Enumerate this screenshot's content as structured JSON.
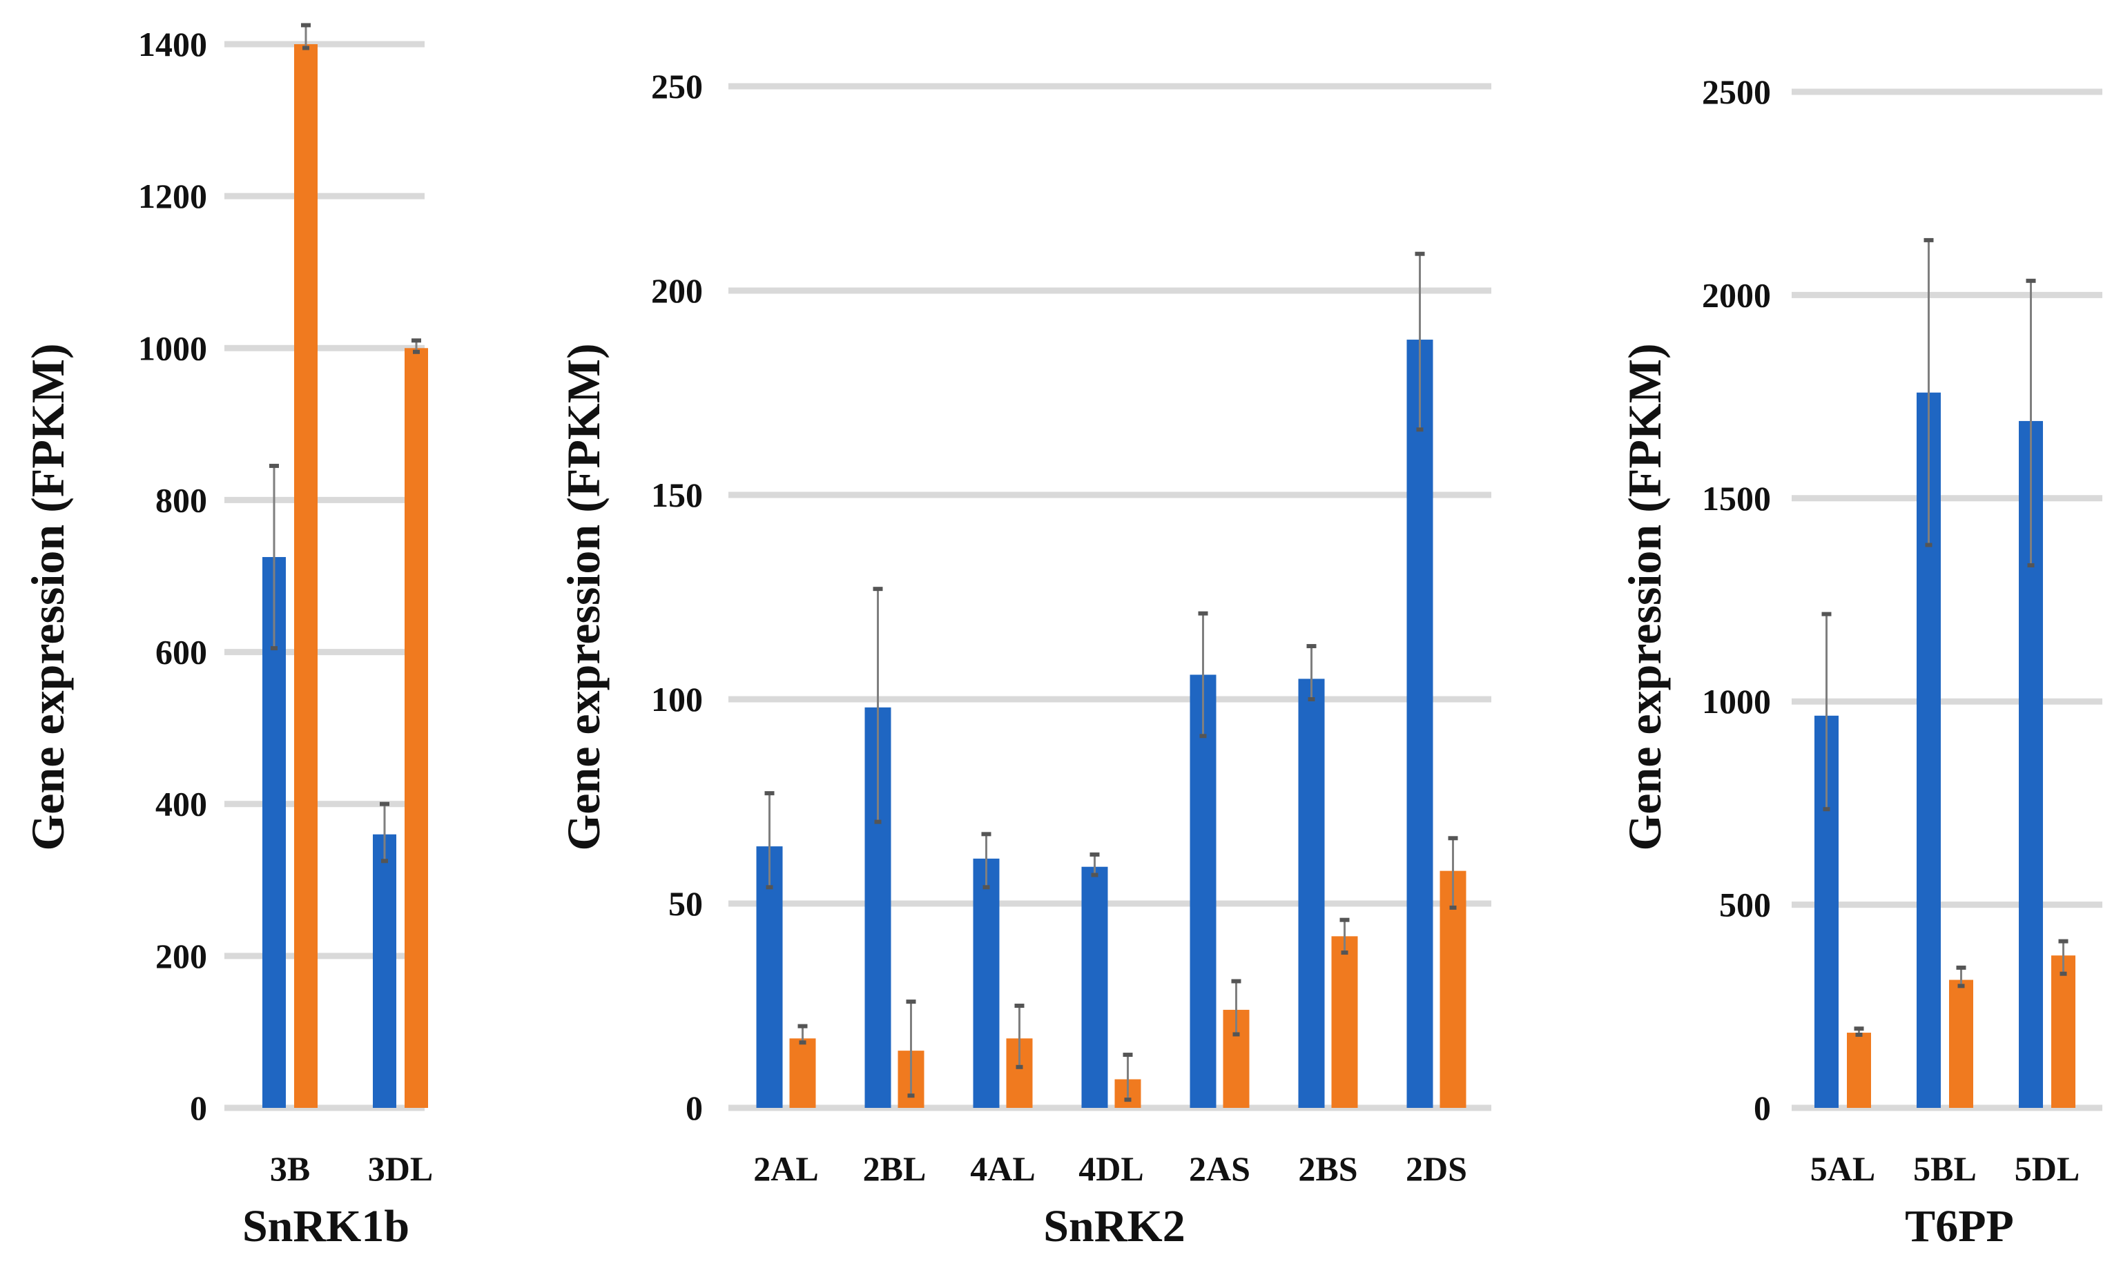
{
  "colors": {
    "series_a": "#1f66c2",
    "series_b": "#f07a1f",
    "grid": "#d9d9d9"
  },
  "chart_data": [
    {
      "type": "bar",
      "title": "SnRK1b",
      "ylabel": "Gene expression (FPKM)",
      "ylim": [
        0,
        1400
      ],
      "yticks": [
        0,
        200,
        400,
        600,
        800,
        1000,
        1200,
        1400
      ],
      "grid": true,
      "categories": [
        "3B",
        "3DL"
      ],
      "series": [
        {
          "values": [
            725,
            360
          ],
          "err_low": [
            605,
            325
          ],
          "err_high": [
            845,
            400
          ],
          "color": "#1f66c2"
        },
        {
          "values": [
            1400,
            1000
          ],
          "err_low": [
            1395,
            995
          ],
          "err_high": [
            1425,
            1010
          ],
          "color": "#f07a1f"
        }
      ]
    },
    {
      "type": "bar",
      "title": "SnRK2",
      "ylabel": "Gene expression (FPKM)",
      "ylim": [
        0,
        250
      ],
      "yticks": [
        0,
        50,
        100,
        150,
        200,
        250
      ],
      "grid": true,
      "categories": [
        "2AL",
        "2BL",
        "4AL",
        "4DL",
        "2AS",
        "2BS",
        "2DS"
      ],
      "series": [
        {
          "values": [
            64,
            98,
            61,
            59,
            106,
            105,
            188
          ],
          "err_low": [
            54,
            70,
            54,
            57,
            91,
            100,
            166
          ],
          "err_high": [
            77,
            127,
            67,
            62,
            121,
            113,
            209
          ],
          "color": "#1f66c2"
        },
        {
          "values": [
            17,
            14,
            17,
            7,
            24,
            42,
            58
          ],
          "err_low": [
            16,
            3,
            10,
            2,
            18,
            38,
            49
          ],
          "err_high": [
            20,
            26,
            25,
            13,
            31,
            46,
            66
          ],
          "color": "#f07a1f"
        }
      ]
    },
    {
      "type": "bar",
      "title": "T6PP",
      "ylabel": "Gene expression (FPKM)",
      "ylim": [
        0,
        2500
      ],
      "yticks": [
        0,
        500,
        1000,
        1500,
        2000,
        2500
      ],
      "grid": true,
      "categories": [
        "5AL",
        "5BL",
        "5DL"
      ],
      "series": [
        {
          "values": [
            965,
            1760,
            1690
          ],
          "err_low": [
            735,
            1385,
            1335
          ],
          "err_high": [
            1215,
            2135,
            2035
          ],
          "color": "#1f66c2"
        },
        {
          "values": [
            185,
            315,
            375
          ],
          "err_low": [
            180,
            300,
            330
          ],
          "err_high": [
            195,
            345,
            410
          ],
          "color": "#f07a1f"
        }
      ]
    }
  ]
}
